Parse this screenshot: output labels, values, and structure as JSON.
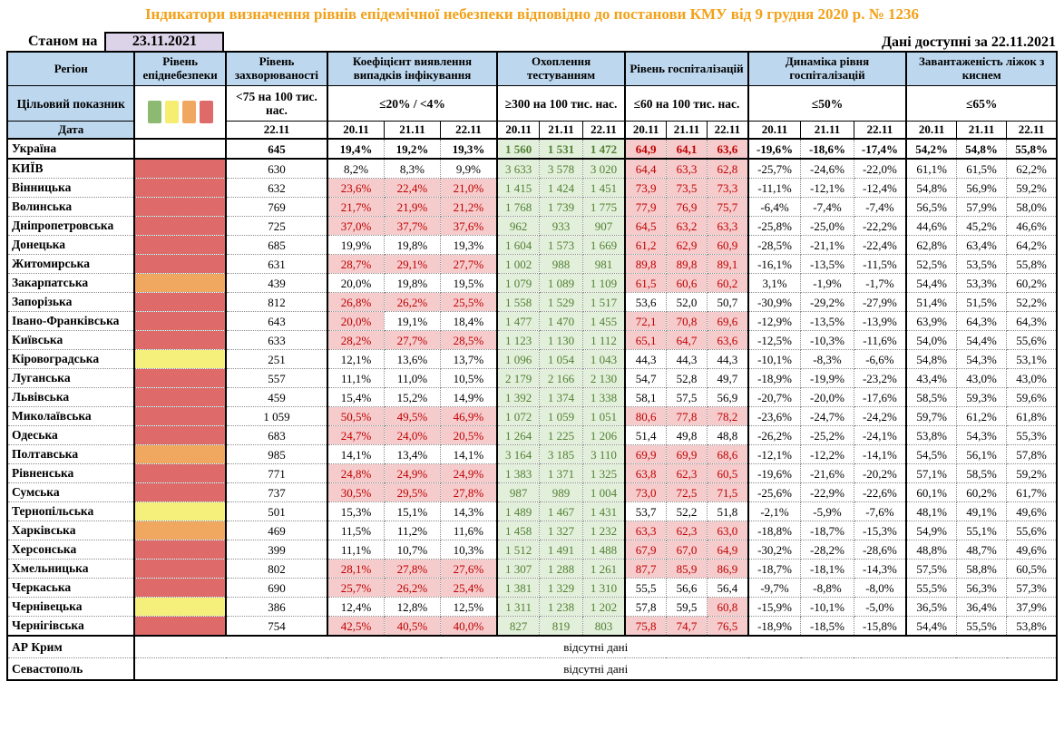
{
  "title": "Індикатори визначення рівнів епідемічної небезпеки відповідно до постанови КМУ від 9 грудня 2020 р. № 1236",
  "as_of_label": "Станом на",
  "as_of_date": "23.11.2021",
  "data_available_label": "Дані доступні за",
  "data_available_date": "22.11.2021",
  "header": {
    "region": "Регіон",
    "level": "Рівень епіднебезпеки",
    "target_label": "Цільовий показник",
    "date_label": "Дата",
    "groups": [
      {
        "label": "Рівень захворюваності",
        "target": "<75 на 100 тис. нас.",
        "dates": [
          "22.11"
        ]
      },
      {
        "label": "Коефіцієнт виявлення випадків інфікування",
        "target": "≤20% / <4%",
        "dates": [
          "20.11",
          "21.11",
          "22.11"
        ]
      },
      {
        "label": "Охоплення тестуванням",
        "target": "≥300 на 100 тис. нас.",
        "dates": [
          "20.11",
          "21.11",
          "22.11"
        ]
      },
      {
        "label": "Рівень госпіталізацій",
        "target": "≤60 на 100 тис. нас.",
        "dates": [
          "20.11",
          "21.11",
          "22.11"
        ]
      },
      {
        "label": "Динаміка рівня госпіталізацій",
        "target": "≤50%",
        "dates": [
          "20.11",
          "21.11",
          "22.11"
        ]
      },
      {
        "label": "Завантаженість ліжок з киснем",
        "target": "≤65%",
        "dates": [
          "20.11",
          "21.11",
          "22.11"
        ]
      }
    ]
  },
  "legend_colors": [
    "#8CBA70",
    "#F5EE71",
    "#F0A861",
    "#DF6A6A"
  ],
  "colors": {
    "title": "#F2A119",
    "header_bg": "#BDD7EE",
    "date_box_bg": "#DDD3E9",
    "bad_bg": "#F5CBCC",
    "bad_text": "#C00000",
    "good_bg": "#E2EFDA",
    "good_text": "#538135",
    "levels": {
      "red": "#DF6A6A",
      "orange": "#F0A861",
      "yellow": "#F5F07B",
      "green": "#8CBA70"
    }
  },
  "rows": [
    {
      "name": "Україна",
      "lvl": "",
      "inc": "645",
      "det": [
        "19,4%",
        "19,2%",
        "19,3%"
      ],
      "detf": "000",
      "test": [
        "1 560",
        "1 531",
        "1 472"
      ],
      "hosp": [
        "64,9",
        "64,1",
        "63,6"
      ],
      "hospf": "111",
      "dyn": [
        "-19,6%",
        "-18,6%",
        "-17,4%"
      ],
      "oxy": [
        "54,2%",
        "54,8%",
        "55,8%"
      ],
      "bold": true
    },
    {
      "name": "КИЇВ",
      "lvl": "red",
      "inc": "630",
      "det": [
        "8,2%",
        "8,3%",
        "9,9%"
      ],
      "detf": "000",
      "test": [
        "3 633",
        "3 578",
        "3 020"
      ],
      "hosp": [
        "64,4",
        "63,3",
        "62,8"
      ],
      "hospf": "111",
      "dyn": [
        "-25,7%",
        "-24,6%",
        "-22,0%"
      ],
      "oxy": [
        "61,1%",
        "61,5%",
        "62,2%"
      ]
    },
    {
      "name": "Вінницька",
      "lvl": "red",
      "inc": "632",
      "det": [
        "23,6%",
        "22,4%",
        "21,0%"
      ],
      "detf": "111",
      "test": [
        "1 415",
        "1 424",
        "1 451"
      ],
      "hosp": [
        "73,9",
        "73,5",
        "73,3"
      ],
      "hospf": "111",
      "dyn": [
        "-11,1%",
        "-12,1%",
        "-12,4%"
      ],
      "oxy": [
        "54,8%",
        "56,9%",
        "59,2%"
      ]
    },
    {
      "name": "Волинська",
      "lvl": "red",
      "inc": "769",
      "det": [
        "21,7%",
        "21,9%",
        "21,2%"
      ],
      "detf": "111",
      "test": [
        "1 768",
        "1 739",
        "1 775"
      ],
      "hosp": [
        "77,9",
        "76,9",
        "75,7"
      ],
      "hospf": "111",
      "dyn": [
        "-6,4%",
        "-7,4%",
        "-7,4%"
      ],
      "oxy": [
        "56,5%",
        "57,9%",
        "58,0%"
      ]
    },
    {
      "name": "Дніпропетровська",
      "lvl": "red",
      "inc": "725",
      "det": [
        "37,0%",
        "37,7%",
        "37,6%"
      ],
      "detf": "111",
      "test": [
        "962",
        "933",
        "907"
      ],
      "hosp": [
        "64,5",
        "63,2",
        "63,3"
      ],
      "hospf": "111",
      "dyn": [
        "-25,8%",
        "-25,0%",
        "-22,2%"
      ],
      "oxy": [
        "44,6%",
        "45,2%",
        "46,6%"
      ]
    },
    {
      "name": "Донецька",
      "lvl": "red",
      "inc": "685",
      "det": [
        "19,9%",
        "19,8%",
        "19,3%"
      ],
      "detf": "000",
      "test": [
        "1 604",
        "1 573",
        "1 669"
      ],
      "hosp": [
        "61,2",
        "62,9",
        "60,9"
      ],
      "hospf": "111",
      "dyn": [
        "-28,5%",
        "-21,1%",
        "-22,4%"
      ],
      "oxy": [
        "62,8%",
        "63,4%",
        "64,2%"
      ]
    },
    {
      "name": "Житомирська",
      "lvl": "red",
      "inc": "631",
      "det": [
        "28,7%",
        "29,1%",
        "27,7%"
      ],
      "detf": "111",
      "test": [
        "1 002",
        "988",
        "981"
      ],
      "hosp": [
        "89,8",
        "89,8",
        "89,1"
      ],
      "hospf": "111",
      "dyn": [
        "-16,1%",
        "-13,5%",
        "-11,5%"
      ],
      "oxy": [
        "52,5%",
        "53,5%",
        "55,8%"
      ]
    },
    {
      "name": "Закарпатська",
      "lvl": "orange",
      "inc": "439",
      "det": [
        "20,0%",
        "19,8%",
        "19,5%"
      ],
      "detf": "000",
      "test": [
        "1 079",
        "1 089",
        "1 109"
      ],
      "hosp": [
        "61,5",
        "60,6",
        "60,2"
      ],
      "hospf": "111",
      "dyn": [
        "3,1%",
        "-1,9%",
        "-1,7%"
      ],
      "oxy": [
        "54,4%",
        "53,3%",
        "60,2%"
      ]
    },
    {
      "name": "Запорізька",
      "lvl": "red",
      "inc": "812",
      "det": [
        "26,8%",
        "26,2%",
        "25,5%"
      ],
      "detf": "111",
      "test": [
        "1 558",
        "1 529",
        "1 517"
      ],
      "hosp": [
        "53,6",
        "52,0",
        "50,7"
      ],
      "hospf": "000",
      "dyn": [
        "-30,9%",
        "-29,2%",
        "-27,9%"
      ],
      "oxy": [
        "51,4%",
        "51,5%",
        "52,2%"
      ]
    },
    {
      "name": "Івано-Франківська",
      "lvl": "red",
      "inc": "643",
      "det": [
        "20,0%",
        "19,1%",
        "18,4%"
      ],
      "detf": "100",
      "test": [
        "1 477",
        "1 470",
        "1 455"
      ],
      "hosp": [
        "72,1",
        "70,8",
        "69,6"
      ],
      "hospf": "111",
      "dyn": [
        "-12,9%",
        "-13,5%",
        "-13,9%"
      ],
      "oxy": [
        "63,9%",
        "64,3%",
        "64,3%"
      ],
      "tall": true
    },
    {
      "name": "Київська",
      "lvl": "red",
      "inc": "633",
      "det": [
        "28,2%",
        "27,7%",
        "28,5%"
      ],
      "detf": "111",
      "test": [
        "1 123",
        "1 130",
        "1 112"
      ],
      "hosp": [
        "65,1",
        "64,7",
        "63,6"
      ],
      "hospf": "111",
      "dyn": [
        "-12,5%",
        "-10,3%",
        "-11,6%"
      ],
      "oxy": [
        "54,0%",
        "54,4%",
        "55,6%"
      ]
    },
    {
      "name": "Кіровоградська",
      "lvl": "yellow",
      "inc": "251",
      "det": [
        "12,1%",
        "13,6%",
        "13,7%"
      ],
      "detf": "000",
      "test": [
        "1 096",
        "1 054",
        "1 043"
      ],
      "hosp": [
        "44,3",
        "44,3",
        "44,3"
      ],
      "hospf": "000",
      "dyn": [
        "-10,1%",
        "-8,3%",
        "-6,6%"
      ],
      "oxy": [
        "54,8%",
        "54,3%",
        "53,1%"
      ]
    },
    {
      "name": "Луганська",
      "lvl": "red",
      "inc": "557",
      "det": [
        "11,1%",
        "11,0%",
        "10,5%"
      ],
      "detf": "000",
      "test": [
        "2 179",
        "2 166",
        "2 130"
      ],
      "hosp": [
        "54,7",
        "52,8",
        "49,7"
      ],
      "hospf": "000",
      "dyn": [
        "-18,9%",
        "-19,9%",
        "-23,2%"
      ],
      "oxy": [
        "43,4%",
        "43,0%",
        "43,0%"
      ]
    },
    {
      "name": "Львівська",
      "lvl": "red",
      "inc": "459",
      "det": [
        "15,4%",
        "15,2%",
        "14,9%"
      ],
      "detf": "000",
      "test": [
        "1 392",
        "1 374",
        "1 338"
      ],
      "hosp": [
        "58,1",
        "57,5",
        "56,9"
      ],
      "hospf": "000",
      "dyn": [
        "-20,7%",
        "-20,0%",
        "-17,6%"
      ],
      "oxy": [
        "58,5%",
        "59,3%",
        "59,6%"
      ]
    },
    {
      "name": "Миколаївська",
      "lvl": "red",
      "inc": "1 059",
      "det": [
        "50,5%",
        "49,5%",
        "46,9%"
      ],
      "detf": "111",
      "test": [
        "1 072",
        "1 059",
        "1 051"
      ],
      "hosp": [
        "80,6",
        "77,8",
        "78,2"
      ],
      "hospf": "111",
      "dyn": [
        "-23,6%",
        "-24,7%",
        "-24,2%"
      ],
      "oxy": [
        "59,7%",
        "61,2%",
        "61,8%"
      ]
    },
    {
      "name": "Одеська",
      "lvl": "red",
      "inc": "683",
      "det": [
        "24,7%",
        "24,0%",
        "20,5%"
      ],
      "detf": "111",
      "test": [
        "1 264",
        "1 225",
        "1 206"
      ],
      "hosp": [
        "51,4",
        "49,8",
        "48,8"
      ],
      "hospf": "000",
      "dyn": [
        "-26,2%",
        "-25,2%",
        "-24,1%"
      ],
      "oxy": [
        "53,8%",
        "54,3%",
        "55,3%"
      ]
    },
    {
      "name": "Полтавська",
      "lvl": "orange",
      "inc": "985",
      "det": [
        "14,1%",
        "13,4%",
        "14,1%"
      ],
      "detf": "000",
      "test": [
        "3 164",
        "3 185",
        "3 110"
      ],
      "hosp": [
        "69,9",
        "69,9",
        "68,6"
      ],
      "hospf": "111",
      "dyn": [
        "-12,1%",
        "-12,2%",
        "-14,1%"
      ],
      "oxy": [
        "54,5%",
        "56,1%",
        "57,8%"
      ]
    },
    {
      "name": "Рівненська",
      "lvl": "red",
      "inc": "771",
      "det": [
        "24,8%",
        "24,9%",
        "24,9%"
      ],
      "detf": "111",
      "test": [
        "1 383",
        "1 371",
        "1 325"
      ],
      "hosp": [
        "63,8",
        "62,3",
        "60,5"
      ],
      "hospf": "111",
      "dyn": [
        "-19,6%",
        "-21,6%",
        "-20,2%"
      ],
      "oxy": [
        "57,1%",
        "58,5%",
        "59,2%"
      ]
    },
    {
      "name": "Сумська",
      "lvl": "red",
      "inc": "737",
      "det": [
        "30,5%",
        "29,5%",
        "27,8%"
      ],
      "detf": "111",
      "test": [
        "987",
        "989",
        "1 004"
      ],
      "hosp": [
        "73,0",
        "72,5",
        "71,5"
      ],
      "hospf": "111",
      "dyn": [
        "-25,6%",
        "-22,9%",
        "-22,6%"
      ],
      "oxy": [
        "60,1%",
        "60,2%",
        "61,7%"
      ]
    },
    {
      "name": "Тернопільська",
      "lvl": "yellow",
      "inc": "501",
      "det": [
        "15,3%",
        "15,1%",
        "14,3%"
      ],
      "detf": "000",
      "test": [
        "1 489",
        "1 467",
        "1 431"
      ],
      "hosp": [
        "53,7",
        "52,2",
        "51,8"
      ],
      "hospf": "000",
      "dyn": [
        "-2,1%",
        "-5,9%",
        "-7,6%"
      ],
      "oxy": [
        "48,1%",
        "49,1%",
        "49,6%"
      ]
    },
    {
      "name": "Харківська",
      "lvl": "orange",
      "inc": "469",
      "det": [
        "11,5%",
        "11,2%",
        "11,6%"
      ],
      "detf": "000",
      "test": [
        "1 458",
        "1 327",
        "1 232"
      ],
      "hosp": [
        "63,3",
        "62,3",
        "63,0"
      ],
      "hospf": "111",
      "dyn": [
        "-18,8%",
        "-18,7%",
        "-15,3%"
      ],
      "oxy": [
        "54,9%",
        "55,1%",
        "55,6%"
      ]
    },
    {
      "name": "Херсонська",
      "lvl": "red",
      "inc": "399",
      "det": [
        "11,1%",
        "10,7%",
        "10,3%"
      ],
      "detf": "000",
      "test": [
        "1 512",
        "1 491",
        "1 488"
      ],
      "hosp": [
        "67,9",
        "67,0",
        "64,9"
      ],
      "hospf": "111",
      "dyn": [
        "-30,2%",
        "-28,2%",
        "-28,6%"
      ],
      "oxy": [
        "48,8%",
        "48,7%",
        "49,6%"
      ]
    },
    {
      "name": "Хмельницька",
      "lvl": "red",
      "inc": "802",
      "det": [
        "28,1%",
        "27,8%",
        "27,6%"
      ],
      "detf": "111",
      "test": [
        "1 307",
        "1 288",
        "1 261"
      ],
      "hosp": [
        "87,7",
        "85,9",
        "86,9"
      ],
      "hospf": "111",
      "dyn": [
        "-18,7%",
        "-18,1%",
        "-14,3%"
      ],
      "oxy": [
        "57,5%",
        "58,8%",
        "60,5%"
      ]
    },
    {
      "name": "Черкаська",
      "lvl": "red",
      "inc": "690",
      "det": [
        "25,7%",
        "26,2%",
        "25,4%"
      ],
      "detf": "111",
      "test": [
        "1 381",
        "1 329",
        "1 310"
      ],
      "hosp": [
        "55,5",
        "56,6",
        "56,4"
      ],
      "hospf": "000",
      "dyn": [
        "-9,7%",
        "-8,8%",
        "-8,0%"
      ],
      "oxy": [
        "55,5%",
        "56,3%",
        "57,3%"
      ]
    },
    {
      "name": "Чернівецька",
      "lvl": "yellow",
      "inc": "386",
      "det": [
        "12,4%",
        "12,8%",
        "12,5%"
      ],
      "detf": "000",
      "test": [
        "1 311",
        "1 238",
        "1 202"
      ],
      "hosp": [
        "57,8",
        "59,5",
        "60,8"
      ],
      "hospf": "001",
      "dyn": [
        "-15,9%",
        "-10,1%",
        "-5,0%"
      ],
      "oxy": [
        "36,5%",
        "36,4%",
        "37,9%"
      ]
    },
    {
      "name": "Чернігівська",
      "lvl": "red",
      "inc": "754",
      "det": [
        "42,5%",
        "40,5%",
        "40,0%"
      ],
      "detf": "111",
      "test": [
        "827",
        "819",
        "803"
      ],
      "hosp": [
        "75,8",
        "74,7",
        "76,5"
      ],
      "hospf": "111",
      "dyn": [
        "-18,9%",
        "-18,5%",
        "-15,8%"
      ],
      "oxy": [
        "54,4%",
        "55,5%",
        "53,8%"
      ]
    }
  ],
  "no_data_rows": [
    {
      "region": "АР Крим",
      "text": "відсутні дані"
    },
    {
      "region": "Севастополь",
      "text": "відсутні дані"
    }
  ]
}
